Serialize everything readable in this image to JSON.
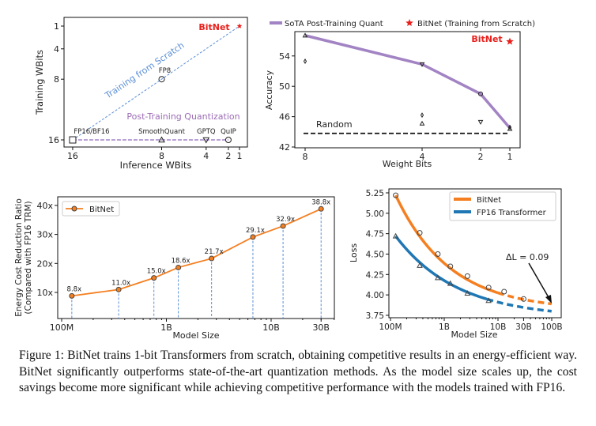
{
  "caption": "Figure 1: BitNet trains 1-bit Transformers from scratch, obtaining competitive results in an energy-efficient way. BitNet significantly outperforms state-of-the-art quantization methods. As the model size scales up, the cost savings become more significant while achieving competitive performance with the models trained with FP16.",
  "colors": {
    "bitnet_red": "#e8201c",
    "scratch_blue": "#5b8fd6",
    "ptq_purple": "#9b6bb5",
    "orange": "#f57f20",
    "fp16_blue": "#1f77b4"
  },
  "chart_data": [
    {
      "type": "scatter",
      "xlabel": "Inference WBits",
      "ylabel": "Training WBits",
      "xticks": [
        16,
        8,
        4,
        2,
        1
      ],
      "yticks": [
        1,
        4,
        8,
        16
      ],
      "xlim": [
        16.8,
        0.2
      ],
      "ylim": [
        17.1,
        -0.2
      ],
      "annotations": {
        "scratch": "Training from Scratch",
        "ptq": "Post-Training Quantization",
        "bitnet": "BitNet"
      },
      "points": [
        {
          "label": "FP16/BF16",
          "x": 16,
          "y": 16,
          "marker": "square"
        },
        {
          "label": "FP8",
          "x": 8,
          "y": 8,
          "marker": "circle"
        },
        {
          "label": "SmoothQuant",
          "x": 8,
          "y": 16,
          "marker": "triangle-up"
        },
        {
          "label": "GPTQ",
          "x": 4,
          "y": 16,
          "marker": "triangle-down"
        },
        {
          "label": "QuIP",
          "x": 2,
          "y": 16,
          "marker": "circle"
        },
        {
          "label": "",
          "x": 1,
          "y": 1,
          "marker": "star"
        }
      ]
    },
    {
      "type": "line",
      "xlabel": "Weight Bits",
      "ylabel": "Accuracy",
      "xticks": [
        8,
        4,
        2,
        1
      ],
      "yticks": [
        42,
        46,
        50,
        54
      ],
      "ylim": [
        42,
        57.5
      ],
      "legend": [
        "SoTA Post-Training Quant",
        "BitNet (Training from Scratch)"
      ],
      "legend_position": "top",
      "series": [
        {
          "name": "SoTA Post-Training Quant",
          "x": [
            8,
            4,
            2,
            1
          ],
          "values": [
            56.7,
            52.9,
            49.0,
            44.5
          ]
        }
      ],
      "other_points": [
        {
          "x": 8,
          "y": 56.7,
          "marker": "triangle-up"
        },
        {
          "x": 8,
          "y": 53.3,
          "marker": "diamond"
        },
        {
          "x": 4,
          "y": 52.9,
          "marker": "triangle-down"
        },
        {
          "x": 4,
          "y": 46.2,
          "marker": "diamond"
        },
        {
          "x": 4,
          "y": 45.1,
          "marker": "triangle-up"
        },
        {
          "x": 2,
          "y": 49.0,
          "marker": "circle"
        },
        {
          "x": 2,
          "y": 45.3,
          "marker": "triangle-down"
        },
        {
          "x": 1,
          "y": 44.6,
          "marker": "diamond"
        },
        {
          "x": 1,
          "y": 44.4,
          "marker": "triangle-up"
        }
      ],
      "bitnet": {
        "label": "BitNet",
        "x": 1,
        "y": 55.9
      },
      "random": {
        "label": "Random",
        "y": 43.8
      }
    },
    {
      "type": "line",
      "xlabel": "Model Size",
      "ylabel": "Energy Cost Reduction Ratio\n(Compared with FP16 TRM)",
      "ylabel_lines": [
        "Energy Cost Reduction Ratio",
        "(Compared with FP16 TRM)"
      ],
      "xscale": "log",
      "xticks": [
        {
          "v": 100000000.0,
          "label": "100M"
        },
        {
          "v": 1000000000.0,
          "label": "1B"
        },
        {
          "v": 10000000000.0,
          "label": "10B"
        },
        {
          "v": 30000000000.0,
          "label": "30B"
        }
      ],
      "yticks": [
        {
          "v": 10,
          "label": "10x"
        },
        {
          "v": 20,
          "label": "20x"
        },
        {
          "v": 30,
          "label": "30x"
        },
        {
          "v": 40,
          "label": "40x"
        }
      ],
      "ylim": [
        1,
        43
      ],
      "legend": [
        "BitNet"
      ],
      "legend_position": "top-left",
      "x": [
        125000000.0,
        350000000.0,
        760000000.0,
        1300000000.0,
        2700000000.0,
        6700000000.0,
        13000000000.0,
        30000000000.0
      ],
      "series": [
        {
          "name": "BitNet",
          "values": [
            8.8,
            11.0,
            15.0,
            18.6,
            21.7,
            29.1,
            32.9,
            38.8
          ],
          "labels": [
            "8.8x",
            "11.0x",
            "15.0x",
            "18.6x",
            "21.7x",
            "29.1x",
            "32.9x",
            "38.8x"
          ]
        }
      ]
    },
    {
      "type": "line",
      "xlabel": "Model Size",
      "ylabel": "Loss",
      "xscale": "log",
      "xticks": [
        {
          "v": 100000000.0,
          "label": "100M"
        },
        {
          "v": 1000000000.0,
          "label": "1B"
        },
        {
          "v": 10000000000.0,
          "label": "10B"
        },
        {
          "v": 30000000000.0,
          "label": "30B"
        },
        {
          "v": 100000000000.0,
          "label": "100B"
        }
      ],
      "yticks": [
        {
          "v": 3.75,
          "label": "3.75"
        },
        {
          "v": 4.0,
          "label": "4.00"
        },
        {
          "v": 4.25,
          "label": "4.25"
        },
        {
          "v": 4.5,
          "label": "4.50"
        },
        {
          "v": 4.75,
          "label": "4.75"
        },
        {
          "v": 5.0,
          "label": "5.00"
        },
        {
          "v": 5.25,
          "label": "5.25"
        }
      ],
      "ylim": [
        3.74,
        5.28
      ],
      "legend": [
        "BitNet",
        "FP16 Transformer"
      ],
      "legend_position": "top-right",
      "annotation": "ΔL = 0.09",
      "series": [
        {
          "name": "BitNet",
          "x": [
            125000000.0,
            350000000.0,
            760000000.0,
            1300000000.0,
            2700000000.0,
            6700000000.0,
            13000000000.0,
            30000000000.0
          ],
          "values": [
            5.22,
            4.76,
            4.5,
            4.35,
            4.23,
            4.09,
            4.04,
            3.95
          ],
          "predicted_100B": 3.89
        },
        {
          "name": "FP16 Transformer",
          "x": [
            125000000.0,
            350000000.0,
            760000000.0,
            1300000000.0,
            2700000000.0,
            6700000000.0
          ],
          "values": [
            4.72,
            4.36,
            4.21,
            4.14,
            4.02,
            3.93
          ],
          "predicted_100B": 3.8
        }
      ]
    }
  ]
}
